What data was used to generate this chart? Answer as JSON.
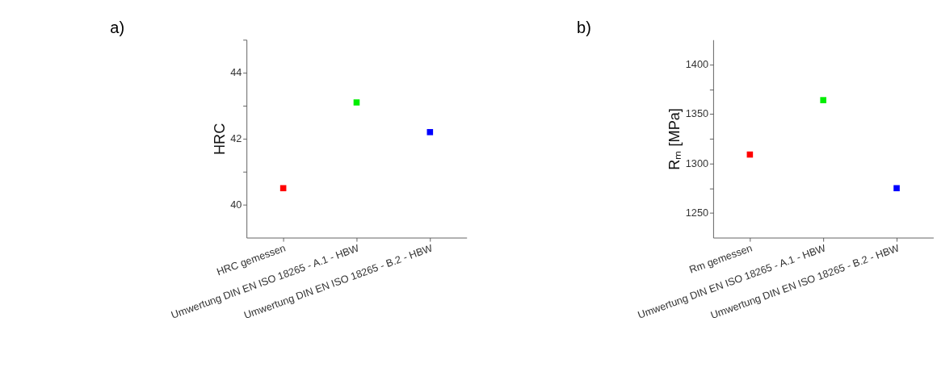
{
  "chart_data": [
    {
      "type": "scatter",
      "title": "a)",
      "ylabel": "HRC",
      "categories": [
        "HRC gemessen",
        "Umwertung DIN EN ISO 18265 - A.1 - HBW",
        "Umwertung DIN EN ISO 18265 - B.2 - HBW"
      ],
      "values": [
        40.5,
        43.1,
        42.2
      ],
      "colors": [
        "#ff0000",
        "#00ee00",
        "#0000ff"
      ],
      "ylim": [
        39,
        45
      ],
      "yticks": [
        40,
        {
          "value": 41,
          "label": null
        },
        42,
        {
          "value": 43,
          "label": null
        },
        44,
        {
          "value": 45,
          "label": null
        }
      ],
      "marker": "square",
      "grid": false,
      "legend": false
    },
    {
      "type": "scatter",
      "title": "b)",
      "ylabel": "Rₘ [MPa]",
      "categories": [
        "Rm gemessen",
        "Umwertung DIN EN ISO 18265 - A.1 - HBW",
        "Umwertung DIN EN ISO 18265 - B.2 - HBW"
      ],
      "values": [
        1309,
        1364,
        1275
      ],
      "colors": [
        "#ff0000",
        "#00ee00",
        "#0000ff"
      ],
      "ylim": [
        1225,
        1425
      ],
      "yticks": [
        1250,
        {
          "value": 1275,
          "label": null
        },
        1300,
        {
          "value": 1325,
          "label": null
        },
        1350,
        {
          "value": 1375,
          "label": null
        },
        1400
      ],
      "marker": "square",
      "grid": false,
      "legend": false
    }
  ]
}
